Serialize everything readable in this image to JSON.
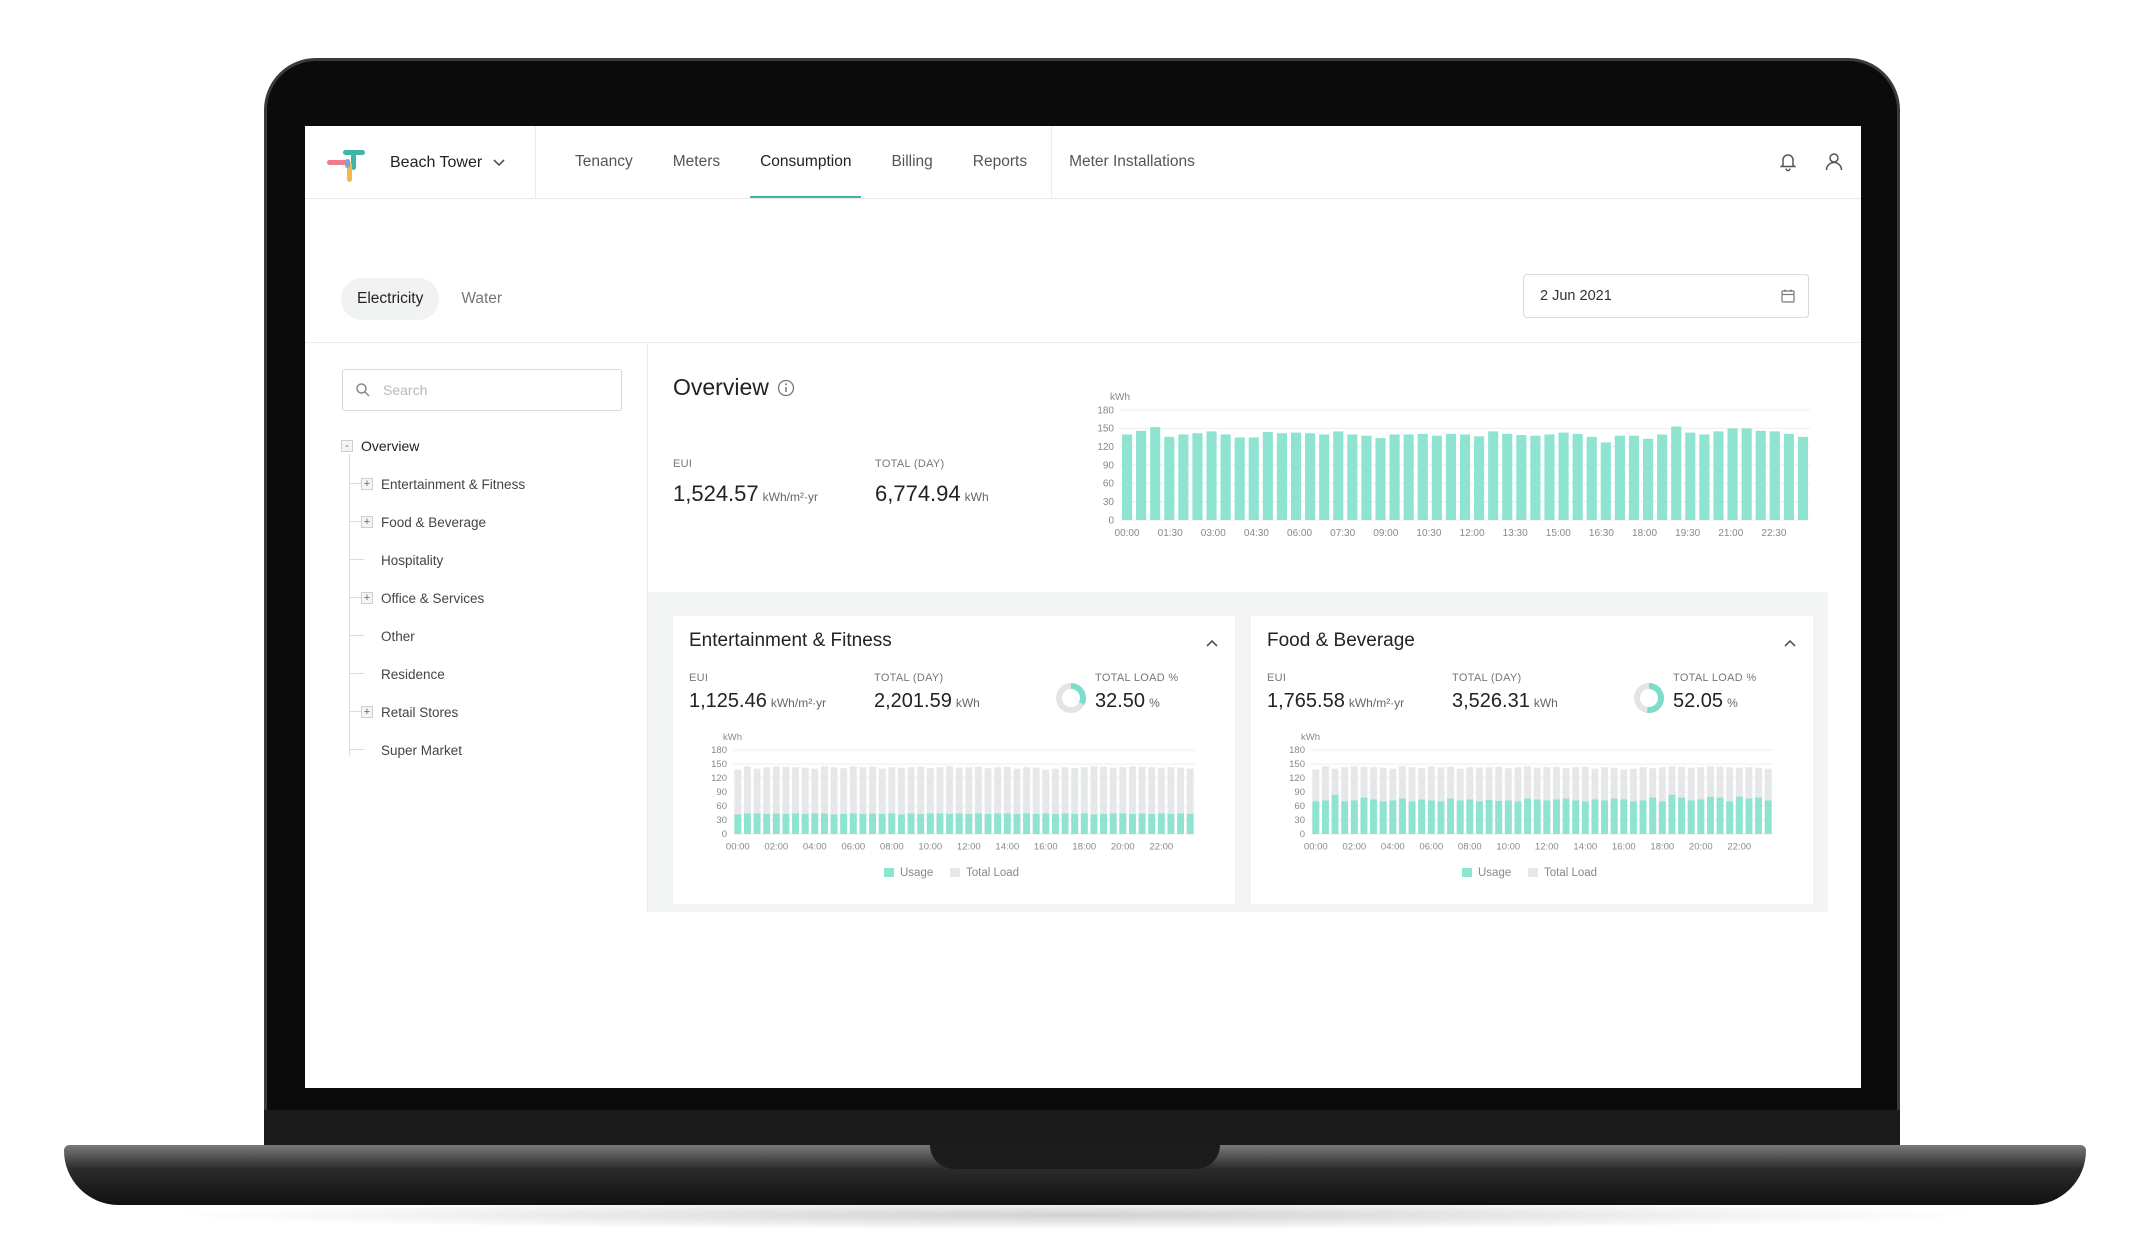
{
  "header": {
    "building": "Beach Tower",
    "nav": [
      "Tenancy",
      "Meters",
      "Consumption",
      "Billing",
      "Reports",
      "Meter Installations"
    ],
    "active_nav": "Consumption",
    "icons": [
      "bell-icon",
      "user-icon"
    ]
  },
  "utility_tabs": [
    "Electricity",
    "Water"
  ],
  "active_tab": "Electricity",
  "date": "2 Jun 2021",
  "search": {
    "placeholder": "Search"
  },
  "tree": {
    "root": "Overview",
    "children": [
      {
        "label": "Entertainment & Fitness",
        "expandable": true
      },
      {
        "label": "Food & Beverage",
        "expandable": true
      },
      {
        "label": "Hospitality",
        "expandable": false
      },
      {
        "label": "Office & Services",
        "expandable": true
      },
      {
        "label": "Other",
        "expandable": false
      },
      {
        "label": "Residence",
        "expandable": false
      },
      {
        "label": "Retail Stores",
        "expandable": true
      },
      {
        "label": "Super Market",
        "expandable": false
      }
    ]
  },
  "overview": {
    "title": "Overview",
    "eui_label": "EUI",
    "eui_value": "1,524.57",
    "eui_unit": "kWh/m²·yr",
    "total_label": "TOTAL (DAY)",
    "total_value": "6,774.94",
    "total_unit": "kWh"
  },
  "cards": [
    {
      "title": "Entertainment & Fitness",
      "eui_label": "EUI",
      "eui_value": "1,125.46",
      "eui_unit": "kWh/m²·yr",
      "total_label": "TOTAL (DAY)",
      "total_value": "2,201.59",
      "total_unit": "kWh",
      "load_label": "TOTAL LOAD %",
      "load_value": "32.50",
      "load_unit": "%",
      "load_fraction": 0.325
    },
    {
      "title": "Food & Beverage",
      "eui_label": "EUI",
      "eui_value": "1,765.58",
      "eui_unit": "kWh/m²·yr",
      "total_label": "TOTAL (DAY)",
      "total_value": "3,526.31",
      "total_unit": "kWh",
      "load_label": "TOTAL LOAD %",
      "load_value": "52.05",
      "load_unit": "%",
      "load_fraction": 0.5205
    }
  ],
  "colors": {
    "accent": "#3fb5a7",
    "bar": "#8fe3d1",
    "bar_gray": "#e6e7e8"
  },
  "chart_data": [
    {
      "type": "bar",
      "ylabel": "kWh",
      "ylim": [
        0,
        180
      ],
      "yticks": [
        0,
        30,
        60,
        90,
        120,
        150,
        180
      ],
      "x_tick_labels": [
        "00:00",
        "01:30",
        "03:00",
        "04:30",
        "06:00",
        "07:30",
        "09:00",
        "10:30",
        "12:00",
        "13:30",
        "15:00",
        "16:30",
        "18:00",
        "19:30",
        "21:00",
        "22:30"
      ],
      "values": [
        140,
        146,
        152,
        136,
        140,
        142,
        145,
        140,
        135,
        135,
        144,
        142,
        143,
        142,
        140,
        145,
        140,
        138,
        134,
        140,
        140,
        141,
        138,
        141,
        140,
        137,
        145,
        141,
        139,
        138,
        140,
        143,
        141,
        136,
        127,
        138,
        138,
        133,
        140,
        153,
        143,
        140,
        145,
        150,
        150,
        146,
        145,
        141,
        136
      ],
      "grid": true
    },
    {
      "type": "bar",
      "ylabel": "kWh",
      "ylim": [
        0,
        180
      ],
      "yticks": [
        0,
        30,
        60,
        90,
        120,
        150,
        180
      ],
      "x_tick_labels": [
        "00:00",
        "02:00",
        "04:00",
        "06:00",
        "08:00",
        "10:00",
        "12:00",
        "14:00",
        "16:00",
        "18:00",
        "20:00",
        "22:00"
      ],
      "series": [
        {
          "name": "Usage",
          "values": [
            42,
            44,
            44,
            43,
            44,
            43,
            44,
            43,
            44,
            44,
            42,
            43,
            44,
            43,
            44,
            43,
            44,
            42,
            44,
            43,
            44,
            44,
            43,
            44,
            43,
            44,
            43,
            44,
            44,
            43,
            44,
            43,
            44,
            43,
            44,
            43,
            44,
            42,
            43,
            44,
            44,
            43,
            44,
            43,
            44,
            43,
            44,
            43
          ]
        },
        {
          "name": "Total Load",
          "values": [
            138,
            145,
            140,
            143,
            145,
            144,
            143,
            142,
            140,
            145,
            143,
            141,
            145,
            143,
            144,
            140,
            143,
            142,
            143,
            144,
            141,
            143,
            145,
            142,
            143,
            144,
            141,
            143,
            144,
            140,
            143,
            142,
            138,
            140,
            143,
            141,
            143,
            145,
            144,
            142,
            143,
            145,
            144,
            143,
            142,
            143,
            142,
            140
          ]
        }
      ],
      "legend": "bottom-center",
      "grid": true
    },
    {
      "type": "bar",
      "ylabel": "kWh",
      "ylim": [
        0,
        180
      ],
      "yticks": [
        0,
        30,
        60,
        90,
        120,
        150,
        180
      ],
      "x_tick_labels": [
        "00:00",
        "02:00",
        "04:00",
        "06:00",
        "08:00",
        "10:00",
        "12:00",
        "14:00",
        "16:00",
        "18:00",
        "20:00",
        "22:00"
      ],
      "series": [
        {
          "name": "Usage",
          "values": [
            70,
            72,
            84,
            70,
            72,
            78,
            74,
            70,
            72,
            76,
            70,
            74,
            72,
            70,
            76,
            72,
            74,
            70,
            73,
            71,
            72,
            70,
            76,
            74,
            72,
            74,
            76,
            72,
            70,
            74,
            72,
            76,
            74,
            70,
            72,
            78,
            70,
            84,
            78,
            72,
            74,
            80,
            78,
            70,
            80,
            76,
            78,
            72
          ]
        },
        {
          "name": "Total Load",
          "values": [
            138,
            145,
            140,
            143,
            145,
            144,
            143,
            142,
            140,
            145,
            143,
            141,
            145,
            143,
            144,
            140,
            143,
            142,
            143,
            144,
            141,
            143,
            145,
            142,
            143,
            144,
            141,
            143,
            144,
            140,
            143,
            142,
            138,
            140,
            143,
            141,
            143,
            145,
            144,
            142,
            143,
            145,
            144,
            143,
            142,
            143,
            142,
            140
          ]
        }
      ],
      "legend": "bottom-center",
      "grid": true
    }
  ]
}
